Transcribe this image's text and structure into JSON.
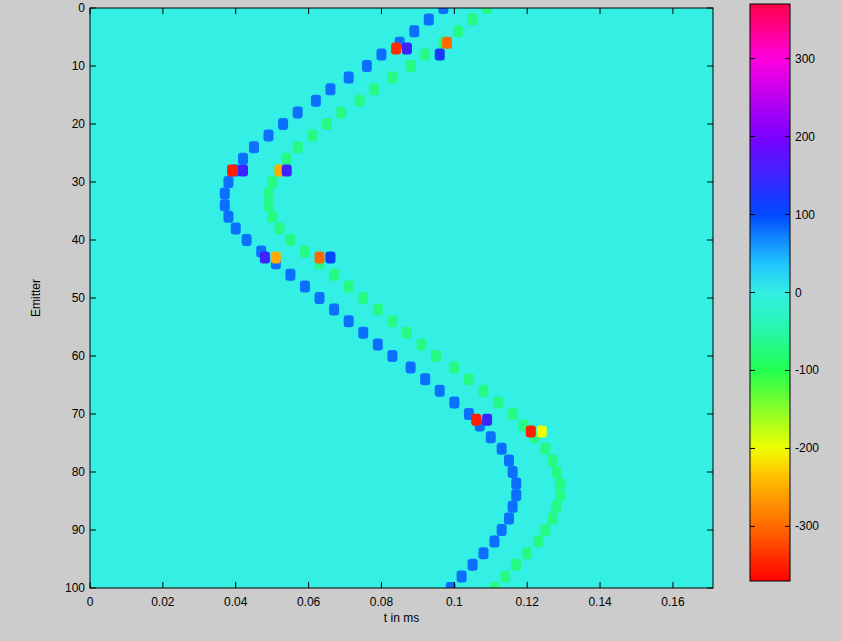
{
  "chart_data": {
    "type": "heatmap",
    "x_label": "t in ms",
    "y_label": "Emitter",
    "xlim": [
      0,
      0.171
    ],
    "xticks": [
      0,
      0.02,
      0.04,
      0.06,
      0.08,
      0.1,
      0.12,
      0.14,
      0.16
    ],
    "ylim": [
      0,
      100
    ],
    "yticks": [
      0,
      10,
      20,
      30,
      40,
      50,
      60,
      70,
      80,
      90,
      100
    ],
    "colorbar_range": [
      -370,
      370
    ],
    "colorbar_ticks": [
      -300,
      -200,
      -100,
      0,
      100,
      200,
      300
    ],
    "cells": {
      "emitter": [
        0,
        2,
        4,
        6,
        8,
        10,
        12,
        14,
        16,
        18,
        20,
        22,
        24,
        26,
        28,
        30,
        32,
        34,
        36,
        38,
        40,
        42,
        44,
        46,
        48,
        50,
        52,
        54,
        56,
        58,
        60,
        62,
        64,
        66,
        68,
        70,
        72,
        74,
        76,
        78,
        80,
        82,
        84,
        86,
        88,
        90,
        92,
        94,
        96,
        98,
        100,
        0,
        2,
        4,
        6,
        8,
        10,
        12,
        14,
        16,
        18,
        20,
        22,
        24,
        26,
        28,
        30,
        32,
        34,
        36,
        38,
        40,
        42,
        44,
        46,
        48,
        50,
        52,
        54,
        56,
        58,
        60,
        62,
        64,
        66,
        68,
        70,
        72,
        74,
        76,
        78,
        80,
        82,
        84,
        86,
        88,
        90,
        92,
        94,
        96,
        98,
        100,
        7,
        7,
        6,
        8,
        28,
        28,
        28,
        28,
        43,
        43,
        43,
        43,
        71,
        71,
        73,
        73
      ],
      "t": [
        0.097,
        0.093,
        0.089,
        0.085,
        0.08,
        0.076,
        0.071,
        0.066,
        0.062,
        0.057,
        0.053,
        0.049,
        0.045,
        0.042,
        0.04,
        0.038,
        0.037,
        0.037,
        0.038,
        0.04,
        0.043,
        0.047,
        0.051,
        0.055,
        0.059,
        0.063,
        0.067,
        0.071,
        0.075,
        0.079,
        0.083,
        0.088,
        0.092,
        0.096,
        0.1,
        0.104,
        0.107,
        0.11,
        0.113,
        0.115,
        0.116,
        0.117,
        0.117,
        0.116,
        0.115,
        0.113,
        0.111,
        0.108,
        0.105,
        0.102,
        0.099,
        0.109,
        0.105,
        0.101,
        0.097,
        0.092,
        0.088,
        0.083,
        0.078,
        0.074,
        0.069,
        0.065,
        0.061,
        0.057,
        0.054,
        0.052,
        0.05,
        0.049,
        0.049,
        0.05,
        0.052,
        0.055,
        0.059,
        0.063,
        0.067,
        0.071,
        0.075,
        0.079,
        0.083,
        0.087,
        0.091,
        0.095,
        0.1,
        0.104,
        0.108,
        0.112,
        0.116,
        0.119,
        0.122,
        0.125,
        0.127,
        0.128,
        0.129,
        0.129,
        0.128,
        0.127,
        0.125,
        0.123,
        0.12,
        0.117,
        0.114,
        0.111,
        0.084,
        0.087,
        0.098,
        0.096,
        0.039,
        0.042,
        0.052,
        0.054,
        0.048,
        0.051,
        0.063,
        0.066,
        0.106,
        0.109,
        0.121,
        0.124
      ],
      "value": [
        80,
        80,
        80,
        80,
        80,
        80,
        80,
        80,
        80,
        80,
        80,
        80,
        80,
        80,
        80,
        80,
        80,
        80,
        80,
        80,
        80,
        80,
        80,
        80,
        80,
        80,
        80,
        80,
        80,
        80,
        80,
        80,
        80,
        80,
        80,
        80,
        80,
        80,
        80,
        80,
        80,
        80,
        80,
        80,
        80,
        80,
        80,
        80,
        80,
        80,
        80,
        -70,
        -70,
        -70,
        -70,
        -70,
        -70,
        -70,
        -70,
        -70,
        -70,
        -70,
        -70,
        -70,
        -70,
        -70,
        -70,
        -70,
        -70,
        -70,
        -70,
        -70,
        -70,
        -70,
        -70,
        -70,
        -70,
        -70,
        -70,
        -70,
        -70,
        -70,
        -70,
        -70,
        -70,
        -70,
        -70,
        -70,
        -70,
        -70,
        -70,
        -70,
        -70,
        -70,
        -70,
        -70,
        -70,
        -70,
        -70,
        -70,
        -70,
        -70,
        -340,
        150,
        -300,
        120,
        -350,
        150,
        -250,
        150,
        150,
        -250,
        -300,
        100,
        -350,
        150,
        -350,
        -200
      ]
    }
  }
}
